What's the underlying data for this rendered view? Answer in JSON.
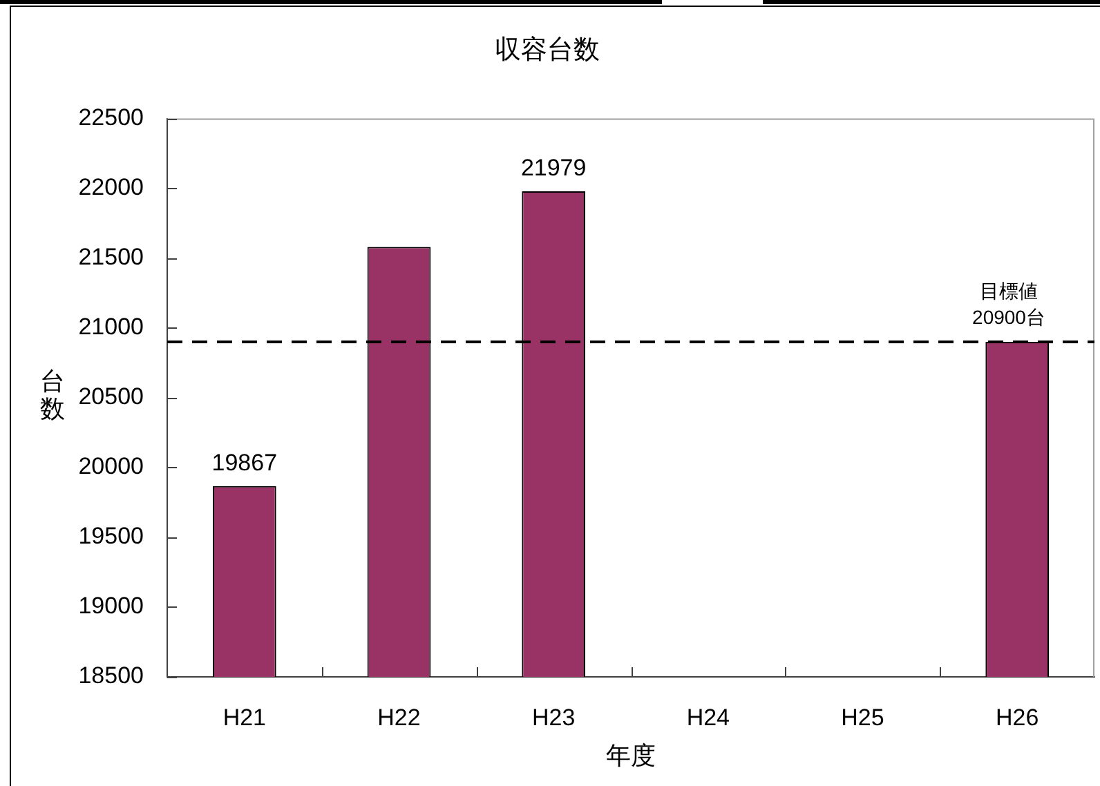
{
  "chart_data": {
    "type": "bar",
    "title": "収容台数",
    "xlabel": "年度",
    "ylabel": "台数",
    "categories": [
      "H21",
      "H22",
      "H23",
      "H24",
      "H25",
      "H26"
    ],
    "values": [
      19867,
      21580,
      21979,
      null,
      null,
      20900
    ],
    "color": "#993366",
    "value_labels": [
      "19867",
      null,
      "21979",
      null,
      null,
      null
    ],
    "ylim": [
      18500,
      22500
    ],
    "yticks": [
      18500,
      19000,
      19500,
      20000,
      20500,
      21000,
      21500,
      22000,
      22500
    ],
    "ref_lines": [
      {
        "axis": "y",
        "value": 20900,
        "label": "目標値 20900台",
        "color": "#000000",
        "line_style": "dashed"
      }
    ]
  }
}
